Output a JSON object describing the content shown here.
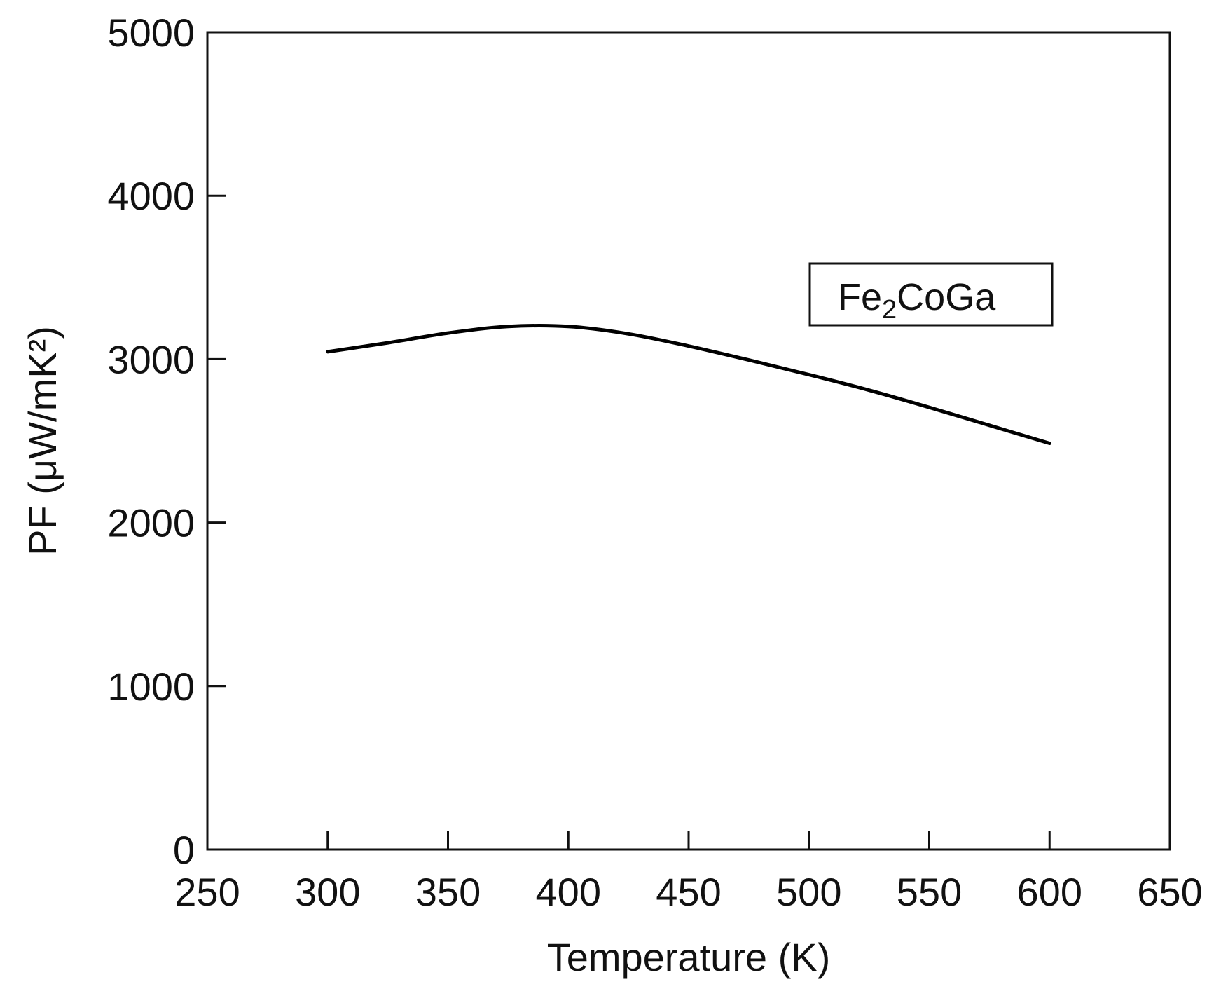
{
  "chart_data": {
    "type": "line",
    "title": "",
    "xlabel": "Temperature (K)",
    "ylabel": "PF (μW/mK²)",
    "xlim": [
      250,
      650
    ],
    "ylim": [
      0,
      5000
    ],
    "xticks": [
      250,
      300,
      350,
      400,
      450,
      500,
      550,
      600,
      650
    ],
    "yticks": [
      0,
      1000,
      2000,
      3000,
      4000,
      5000
    ],
    "grid": false,
    "legend": "top-right",
    "legend_base": "Fe",
    "legend_sub": "2",
    "legend_rest": "CoGa",
    "series": [
      {
        "name": "Fe₂CoGa",
        "color": "#000000",
        "x": [
          300,
          325,
          350,
          375,
          400,
          425,
          450,
          475,
          500,
          525,
          550,
          575,
          600
        ],
        "y": [
          3045,
          3100,
          3160,
          3200,
          3200,
          3155,
          3080,
          2995,
          2905,
          2810,
          2705,
          2595,
          2485
        ]
      }
    ]
  }
}
